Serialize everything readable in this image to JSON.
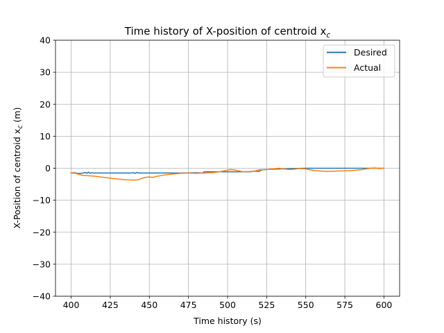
{
  "chart_data": {
    "type": "line",
    "title": "Time history of X-position of centroid x",
    "title_subscript": "c",
    "xlabel": "Time history (s)",
    "ylabel": "X-Position of centroid x",
    "ylabel_subscript": "c",
    "ylabel_unit": " (m)",
    "xlim": [
      390,
      610
    ],
    "ylim": [
      -40,
      40
    ],
    "xticks": [
      400,
      425,
      450,
      475,
      500,
      525,
      550,
      575,
      600
    ],
    "yticks": [
      -40,
      -30,
      -20,
      -10,
      0,
      10,
      20,
      30,
      40
    ],
    "grid": true,
    "legend_position": "top-right",
    "series": [
      {
        "name": "Desired",
        "color": "#1f77b4",
        "x": [
          400,
          402,
          404,
          406,
          408,
          409,
          410,
          411,
          412,
          413,
          414,
          416,
          420,
          430,
          438,
          440,
          441,
          442,
          443,
          445,
          460,
          470,
          480,
          484,
          485,
          490,
          500,
          510,
          515,
          517,
          520,
          522,
          525,
          530,
          540,
          550,
          560,
          570,
          580,
          590,
          600
        ],
        "y": [
          -1.5,
          -1.4,
          -1.6,
          -1.6,
          -1.5,
          -1.3,
          -1.6,
          -1.2,
          -1.6,
          -1.4,
          -1.5,
          -1.5,
          -1.5,
          -1.5,
          -1.5,
          -1.4,
          -1.6,
          -1.3,
          -1.5,
          -1.5,
          -1.5,
          -1.5,
          -1.4,
          -1.5,
          -1.1,
          -1.1,
          -1.1,
          -1.1,
          -1.1,
          -0.9,
          -1.0,
          -0.5,
          -0.4,
          -0.3,
          -0.1,
          0.0,
          0.0,
          0.0,
          0.0,
          0.0,
          0.0
        ]
      },
      {
        "name": "Actual",
        "color": "#ff7f0e",
        "x": [
          400,
          403,
          405,
          407,
          410,
          415,
          420,
          425,
          430,
          435,
          440,
          443,
          445,
          447,
          450,
          452,
          455,
          460,
          465,
          470,
          475,
          480,
          485,
          490,
          495,
          500,
          502,
          505,
          510,
          515,
          518,
          520,
          525,
          530,
          533,
          535,
          540,
          543,
          545,
          550,
          555,
          560,
          565,
          570,
          575,
          580,
          585,
          590,
          594,
          597,
          600
        ],
        "y": [
          -1.5,
          -1.6,
          -1.9,
          -2.2,
          -2.3,
          -2.5,
          -2.8,
          -3.1,
          -3.4,
          -3.6,
          -3.7,
          -3.6,
          -3.2,
          -2.9,
          -2.7,
          -2.9,
          -2.5,
          -2.1,
          -1.8,
          -1.6,
          -1.5,
          -1.6,
          -1.5,
          -1.4,
          -1.1,
          -0.6,
          -0.4,
          -0.6,
          -1.1,
          -1.0,
          -0.8,
          -0.5,
          -0.4,
          -0.2,
          0.0,
          -0.2,
          -0.4,
          -0.3,
          -0.1,
          -0.2,
          -0.7,
          -0.9,
          -1.0,
          -0.9,
          -0.8,
          -0.7,
          -0.5,
          -0.1,
          0.1,
          -0.1,
          0.0
        ]
      }
    ]
  }
}
